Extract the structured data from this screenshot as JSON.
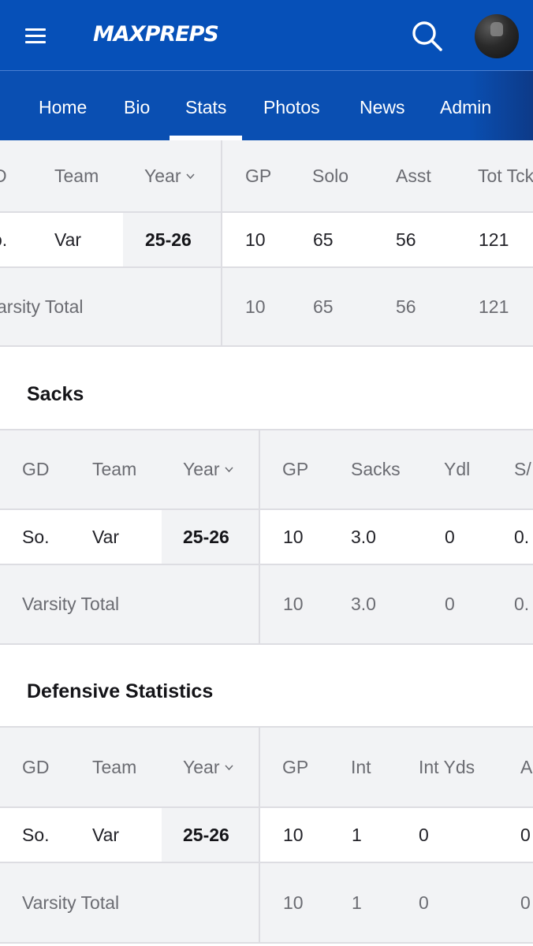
{
  "header": {
    "logo": "MAXPREPS",
    "nav_tabs": [
      {
        "label": "Home"
      },
      {
        "label": "Bio"
      },
      {
        "label": "Stats",
        "active": true
      },
      {
        "label": "Photos"
      },
      {
        "label": "News"
      },
      {
        "label": "Admin"
      }
    ]
  },
  "tackles_table": {
    "headers": [
      "D",
      "Team",
      "Year",
      "GP",
      "Solo",
      "Asst",
      "Tot Tck"
    ],
    "row": [
      "o.",
      "Var",
      "25-26",
      "10",
      "65",
      "56",
      "121"
    ],
    "total": [
      "arsity Total",
      "10",
      "65",
      "56",
      "121"
    ]
  },
  "sacks": {
    "title": "Sacks",
    "headers": [
      "GD",
      "Team",
      "Year",
      "GP",
      "Sacks",
      "Ydl",
      "S/"
    ],
    "row": [
      "So.",
      "Var",
      "25-26",
      "10",
      "3.0",
      "0",
      "0."
    ],
    "total": [
      "Varsity Total",
      "10",
      "3.0",
      "0",
      "0."
    ]
  },
  "defensive": {
    "title": "Defensive Statistics",
    "headers": [
      "GD",
      "Team",
      "Year",
      "GP",
      "Int",
      "Int Yds",
      "A"
    ],
    "row": [
      "So.",
      "Var",
      "25-26",
      "10",
      "1",
      "0",
      "0"
    ],
    "total": [
      "Varsity Total",
      "10",
      "1",
      "0",
      "0"
    ]
  },
  "colors": {
    "header_blue": "#0650b8",
    "nav_blue": "#0a4fb2",
    "row_gray": "#f2f3f5",
    "divider": "#dddde2"
  }
}
